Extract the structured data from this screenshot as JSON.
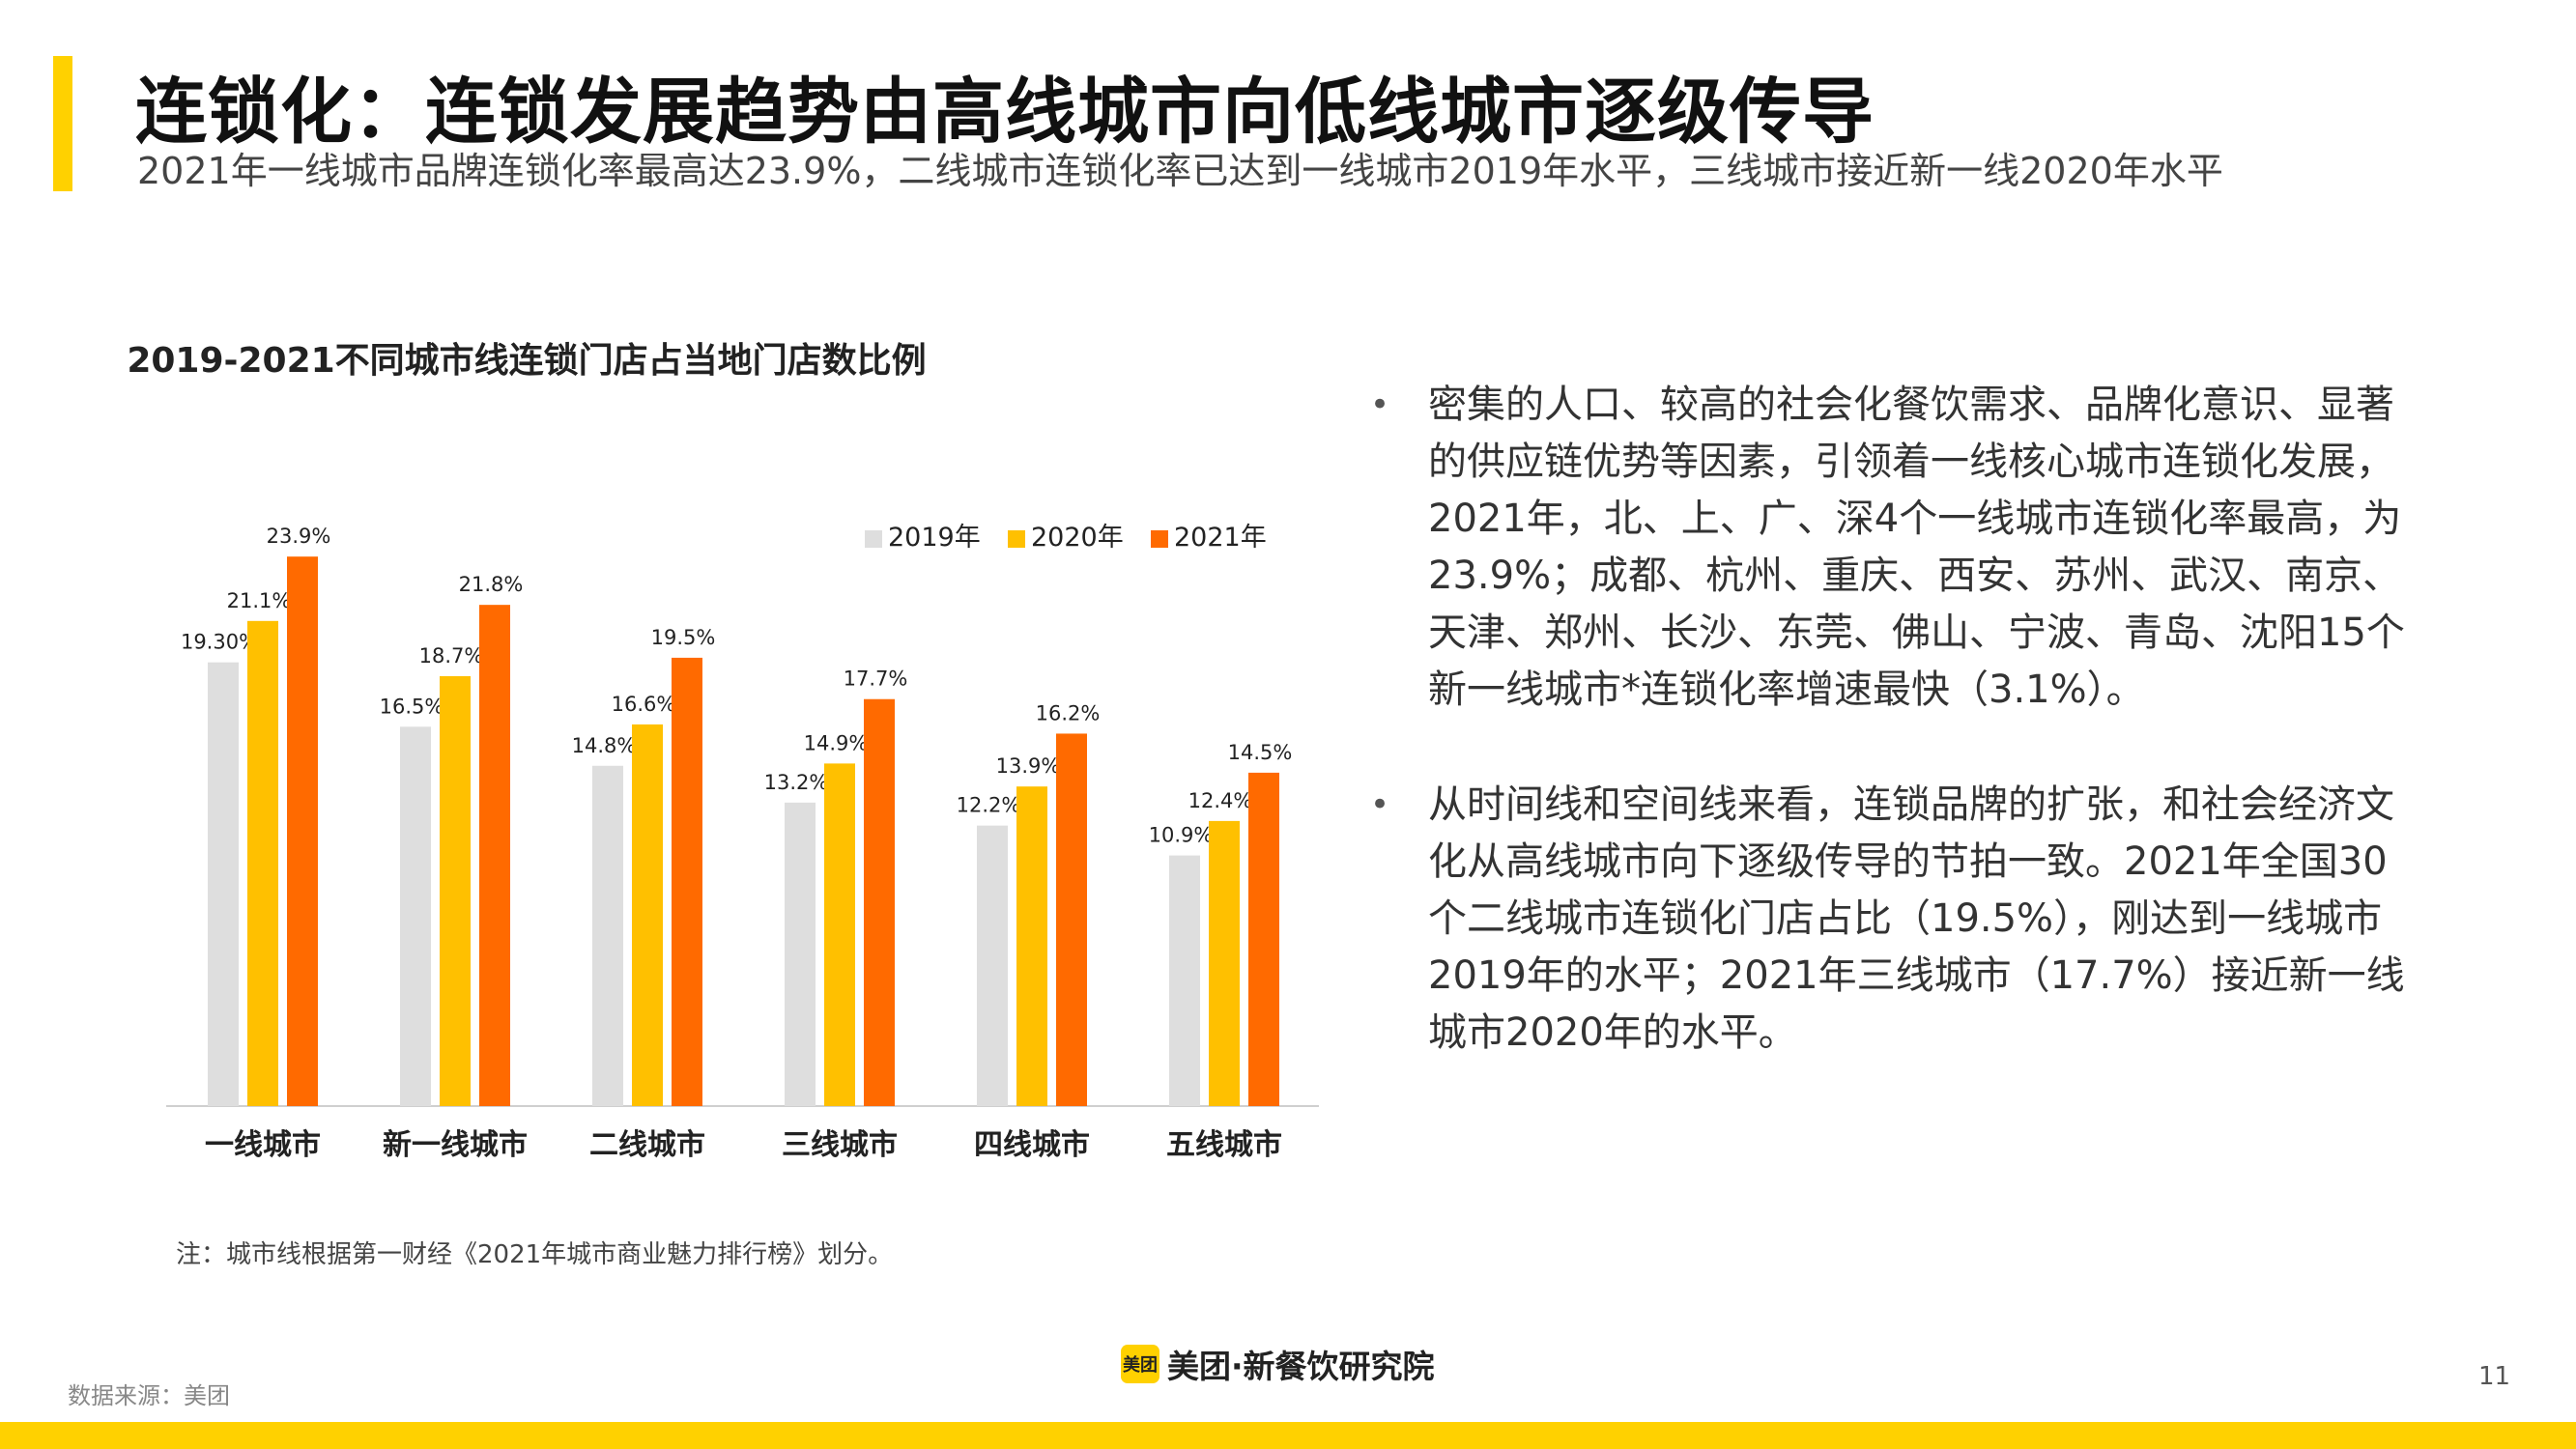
{
  "header": {
    "title": "连锁化：连锁发展趋势由高线城市向低线城市逐级传导",
    "subtitle": "2021年一线城市品牌连锁化率最高达23.9%，二线城市连锁化率已达到一线城市2019年水平，三线城市接近新一线2020年水平"
  },
  "chart_data": {
    "type": "bar",
    "title": "2019-2021不同城市线连锁门店占当地门店数比例",
    "categories": [
      "一线城市",
      "新一线城市",
      "二线城市",
      "三线城市",
      "四线城市",
      "五线城市"
    ],
    "series": [
      {
        "name": "2019年",
        "color": "#DEDEDE",
        "values": [
          19.3,
          16.5,
          14.8,
          13.2,
          12.2,
          10.9
        ],
        "labels": [
          "19.30%",
          "16.5%",
          "14.8%",
          "13.2%",
          "12.2%",
          "10.9%"
        ]
      },
      {
        "name": "2020年",
        "color": "#FFC000",
        "values": [
          21.1,
          18.7,
          16.6,
          14.9,
          13.9,
          12.4
        ],
        "labels": [
          "21.1%",
          "18.7%",
          "16.6%",
          "14.9%",
          "13.9%",
          "12.4%"
        ]
      },
      {
        "name": "2021年",
        "color": "#FF6A00",
        "values": [
          23.9,
          21.8,
          19.5,
          17.7,
          16.2,
          14.5
        ],
        "labels": [
          "23.9%",
          "21.8%",
          "19.5%",
          "17.7%",
          "16.2%",
          "14.5%"
        ]
      }
    ],
    "ylim": [
      0,
      25
    ],
    "legend_position": "top-right",
    "grid": false
  },
  "bullets": [
    "密集的人口、较高的社会化餐饮需求、品牌化意识、显著的供应链优势等因素，引领着一线核心城市连锁化发展，2021年，北、上、广、深4个一线城市连锁化率最高，为23.9%；成都、杭州、重庆、西安、苏州、武汉、南京、天津、郑州、长沙、东莞、佛山、宁波、青岛、沈阳15个新一线城市*连锁化率增速最快（3.1%）。",
    "从时间线和空间线来看，连锁品牌的扩张，和社会经济文化从高线城市向下逐级传导的节拍一致。2021年全国30个二线城市连锁化门店占比（19.5%），刚达到一线城市2019年的水平；2021年三线城市（17.7%）接近新一线城市2020年的水平。"
  ],
  "note": "注：城市线根据第一财经《2021年城市商业魅力排行榜》划分。",
  "source": "数据来源：美团",
  "brand": {
    "logo_text": "美团",
    "name": "美团·新餐饮研究院"
  },
  "page_number": "11",
  "colors": {
    "accent": "#FFD100",
    "bar_2019": "#DEDEDE",
    "bar_2020": "#FFC000",
    "bar_2021": "#FF6A00"
  }
}
